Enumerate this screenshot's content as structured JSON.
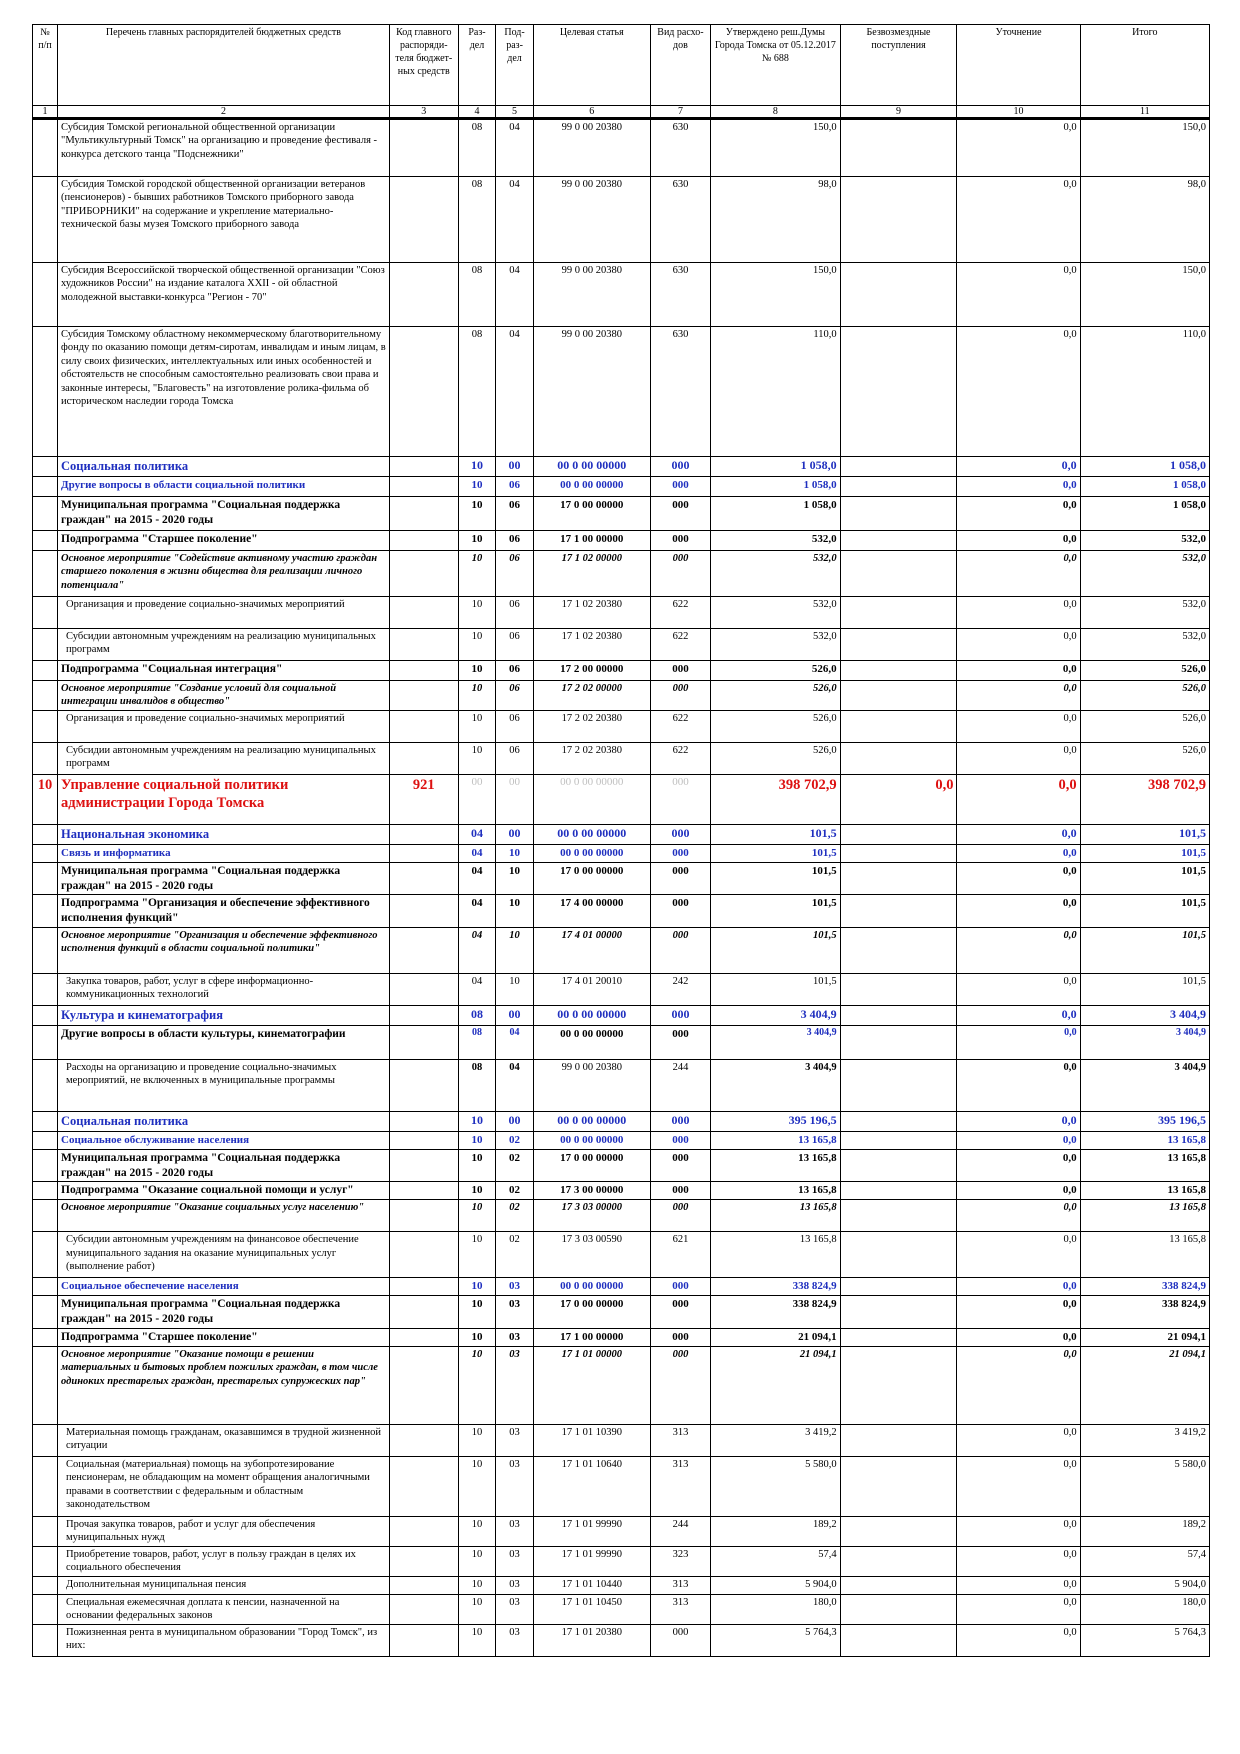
{
  "header": {
    "num": "№ п/п",
    "name": "Перечень главных распорядителей бюджетных средств",
    "code": "Код главного распоряди-теля бюджет-ных средств",
    "razdel": "Раз-дел",
    "podrazdel": "Под-раз-дел",
    "target": "Целевая статья",
    "vid": "Вид расхо-дов",
    "approved": "Утверждено реш.Думы Города Томска от 05.12.2017 № 688",
    "free": "Безвозмездные поступления",
    "clarify": "Уточнение",
    "total": "Итого"
  },
  "colnums": [
    "1",
    "2",
    "3",
    "4",
    "5",
    "6",
    "7",
    "8",
    "9",
    "10",
    "11"
  ],
  "rows": [
    {
      "style": "normal",
      "h": 58,
      "name": "Субсидия Томской региональной общественной организации \"Мультикультурный Томск\" на организацию и проведение фестиваля - конкурса детского танца \"Подснежники\"",
      "razdel": "08",
      "podrazdel": "04",
      "target": "99 0 00 20380",
      "vid": "630",
      "approved": "150,0",
      "clarify": "0,0",
      "total": "150,0"
    },
    {
      "style": "normal",
      "h": 86,
      "name": "Субсидия Томской городской общественной организации ветеранов (пенсионеров) - бывших работников Томского приборного завода \"ПРИБОРНИКИ\" на содержание и укрепление материально-технической базы музея Томского приборного завода",
      "razdel": "08",
      "podrazdel": "04",
      "target": "99 0 00 20380",
      "vid": "630",
      "approved": "98,0",
      "clarify": "0,0",
      "total": "98,0"
    },
    {
      "style": "normal",
      "h": 64,
      "name": "Субсидия Всероссийской творческой общественной организации \"Союз художников России\" на издание каталога XXII - ой областной молодежной выставки-конкурса \"Регион - 70\"",
      "razdel": "08",
      "podrazdel": "04",
      "target": "99 0 00 20380",
      "vid": "630",
      "approved": "150,0",
      "clarify": "0,0",
      "total": "150,0"
    },
    {
      "style": "normal",
      "h": 130,
      "name": "Субсидия Томскому областному некоммерческому благотворительному фонду по оказанию помощи детям-сиротам, инвалидам и иным лицам, в силу своих физических, интеллектуальных или иных особенностей и обстоятельств не способным самостоятельно реализовать свои права и законные интересы, \"Благовесть\" на изготовление ролика-фильма об историческом наследии города Томска",
      "razdel": "08",
      "podrazdel": "04",
      "target": "99 0 00 20380",
      "vid": "630",
      "approved": "110,0",
      "clarify": "0,0",
      "total": "110,0"
    },
    {
      "style": "blue",
      "h": 20,
      "name": "Социальная политика",
      "razdel": "10",
      "podrazdel": "00",
      "target": "00 0 00 00000",
      "vid": "000",
      "approved": "1 058,0",
      "clarify": "0,0",
      "total": "1 058,0"
    },
    {
      "style": "blue2",
      "h": 20,
      "name": "Другие вопросы в области социальной политики",
      "razdel": "10",
      "podrazdel": "06",
      "target": "00 0 00 00000",
      "vid": "000",
      "approved": "1 058,0",
      "clarify": "0,0",
      "total": "1 058,0"
    },
    {
      "style": "bold",
      "h": 34,
      "name": "Муниципальная программа \"Социальная поддержка граждан\" на 2015 - 2020 годы",
      "razdel": "10",
      "podrazdel": "06",
      "target": "17 0 00 00000",
      "vid": "000",
      "approved": "1 058,0",
      "clarify": "0,0",
      "total": "1 058,0"
    },
    {
      "style": "bold",
      "h": 20,
      "name": "Подпрограмма \"Старшее поколение\"",
      "razdel": "10",
      "podrazdel": "06",
      "target": "17 1 00 00000",
      "vid": "000",
      "approved": "532,0",
      "clarify": "0,0",
      "total": "532,0"
    },
    {
      "style": "ital",
      "h": 46,
      "name": "Основное мероприятие \"Содействие активному участию граждан старшего поколения в жизни общества для реализации личного потенциала\"",
      "razdel": "10",
      "podrazdel": "06",
      "target": "17 1 02 00000",
      "vid": "000",
      "approved": "532,0",
      "clarify": "0,0",
      "total": "532,0"
    },
    {
      "style": "sub",
      "h": 32,
      "name": "Организация и проведение социально-значимых мероприятий",
      "razdel": "10",
      "podrazdel": "06",
      "target": "17 1 02 20380",
      "vid": "622",
      "approved": "532,0",
      "clarify": "0,0",
      "total": "532,0"
    },
    {
      "style": "sub",
      "h": 32,
      "name": "Субсидии автономным учреждениям на реализацию муниципальных программ",
      "razdel": "10",
      "podrazdel": "06",
      "target": "17 1 02 20380",
      "vid": "622",
      "approved": "532,0",
      "clarify": "0,0",
      "total": "532,0"
    },
    {
      "style": "bold",
      "h": 20,
      "name": "Подпрограмма \"Социальная интеграция\"",
      "razdel": "10",
      "podrazdel": "06",
      "target": "17 2 00 00000",
      "vid": "000",
      "approved": "526,0",
      "clarify": "0,0",
      "total": "526,0"
    },
    {
      "style": "ital",
      "h": 30,
      "name": "Основное мероприятие \"Создание условий для социальной интеграции инвалидов в общество\"",
      "razdel": "10",
      "podrazdel": "06",
      "target": "17 2 02 00000",
      "vid": "000",
      "approved": "526,0",
      "clarify": "0,0",
      "total": "526,0"
    },
    {
      "style": "sub",
      "h": 32,
      "name": "Организация и проведение социально-значимых мероприятий",
      "razdel": "10",
      "podrazdel": "06",
      "target": "17 2 02 20380",
      "vid": "622",
      "approved": "526,0",
      "clarify": "0,0",
      "total": "526,0"
    },
    {
      "style": "sub",
      "h": 32,
      "name": "Субсидии автономным учреждениям на реализацию муниципальных программ",
      "razdel": "10",
      "podrazdel": "06",
      "target": "17 2 02 20380",
      "vid": "622",
      "approved": "526,0",
      "clarify": "0,0",
      "total": "526,0"
    },
    {
      "style": "red",
      "h": 50,
      "num": "10",
      "name": "Управление социальной политики администрации Города Томска",
      "code": "921",
      "razdel": "00",
      "podrazdel": "00",
      "target": "00 0 00 00000",
      "vid": "000",
      "approved": "398 702,9",
      "free": "0,0",
      "clarify": "0,0",
      "total": "398 702,9"
    },
    {
      "style": "blue",
      "h": 20,
      "name": "Национальная экономика",
      "razdel": "04",
      "podrazdel": "00",
      "target": "00 0 00 00000",
      "vid": "000",
      "approved": "101,5",
      "clarify": "0,0",
      "total": "101,5"
    },
    {
      "style": "blue2",
      "h": 18,
      "name": "Связь и информатика",
      "razdel": "04",
      "podrazdel": "10",
      "target": "00 0 00 00000",
      "vid": "000",
      "approved": "101,5",
      "clarify": "0,0",
      "total": "101,5"
    },
    {
      "style": "bold",
      "h": 32,
      "name": "Муниципальная программа \"Социальная поддержка граждан\" на 2015 - 2020 годы",
      "razdel": "04",
      "podrazdel": "10",
      "target": "17 0 00 00000",
      "vid": "000",
      "approved": "101,5",
      "clarify": "0,0",
      "total": "101,5"
    },
    {
      "style": "bold",
      "h": 32,
      "name": "Подпрограмма \"Организация и обеспечение эффективного исполнения функций\"",
      "razdel": "04",
      "podrazdel": "10",
      "target": "17 4 00 00000",
      "vid": "000",
      "approved": "101,5",
      "clarify": "0,0",
      "total": "101,5"
    },
    {
      "style": "ital",
      "h": 46,
      "name": "Основное мероприятие \"Организация и обеспечение эффективного исполнения функций в области социальной политики\"",
      "razdel": "04",
      "podrazdel": "10",
      "target": "17 4 01 00000",
      "vid": "000",
      "approved": "101,5",
      "clarify": "0,0",
      "total": "101,5"
    },
    {
      "style": "sub",
      "h": 32,
      "name": "Закупка товаров, работ, услуг в сфере информационно-коммуникационных технологий",
      "razdel": "04",
      "podrazdel": "10",
      "target": "17 4 01 20010",
      "vid": "242",
      "approved": "101,5",
      "clarify": "0,0",
      "total": "101,5"
    },
    {
      "style": "blue",
      "h": 20,
      "name": "Культура и кинематография",
      "razdel": "08",
      "podrazdel": "00",
      "target": "00 0 00 00000",
      "vid": "000",
      "approved": "3 404,9",
      "clarify": "0,0",
      "total": "3 404,9"
    },
    {
      "style": "bold",
      "h": 34,
      "name": "Другие вопросы в области культуры, кинематографии",
      "razdel": "08",
      "podrazdel": "04",
      "target": "00 0 00 00000",
      "vid": "000",
      "approved": "3 404,9",
      "clarify": "0,0",
      "total": "3 404,9",
      "blueNums": true
    },
    {
      "style": "sub",
      "h": 52,
      "name": "Расходы на организацию и проведение социально-значимых мероприятий, не включенных в муниципальные программы",
      "razdel": "08",
      "podrazdel": "04",
      "target": "99 0 00 20380",
      "vid": "244",
      "approved": "3 404,9",
      "clarify": "0,0",
      "total": "3 404,9",
      "boldNums": true
    },
    {
      "style": "blue",
      "h": 20,
      "name": "Социальная политика",
      "razdel": "10",
      "podrazdel": "00",
      "target": "00 0 00 00000",
      "vid": "000",
      "approved": "395 196,5",
      "clarify": "0,0",
      "total": "395 196,5"
    },
    {
      "style": "blue2",
      "h": 18,
      "name": "Социальное обслуживание населения",
      "razdel": "10",
      "podrazdel": "02",
      "target": "00 0 00 00000",
      "vid": "000",
      "approved": "13 165,8",
      "clarify": "0,0",
      "total": "13 165,8"
    },
    {
      "style": "bold",
      "h": 32,
      "name": "Муниципальная программа \"Социальная поддержка граждан\" на 2015 - 2020 годы",
      "razdel": "10",
      "podrazdel": "02",
      "target": "17 0 00 00000",
      "vid": "000",
      "approved": "13 165,8",
      "clarify": "0,0",
      "total": "13 165,8"
    },
    {
      "style": "bold",
      "h": 18,
      "name": "Подпрограмма \"Оказание социальной помощи и услуг\"",
      "razdel": "10",
      "podrazdel": "02",
      "target": "17 3 00 00000",
      "vid": "000",
      "approved": "13 165,8",
      "clarify": "0,0",
      "total": "13 165,8"
    },
    {
      "style": "ital",
      "h": 32,
      "name": "Основное мероприятие \"Оказание социальных услуг населению\"",
      "razdel": "10",
      "podrazdel": "02",
      "target": "17 3 03 00000",
      "vid": "000",
      "approved": "13 165,8",
      "clarify": "0,0",
      "total": "13 165,8"
    },
    {
      "style": "sub",
      "h": 46,
      "name": "Субсидии автономным учреждениям на финансовое обеспечение муниципального задания на оказание муниципальных услуг (выполнение работ)",
      "razdel": "10",
      "podrazdel": "02",
      "target": "17 3 03 00590",
      "vid": "621",
      "approved": "13 165,8",
      "clarify": "0,0",
      "total": "13 165,8"
    },
    {
      "style": "blue2",
      "h": 18,
      "name": "Социальное обеспечение населения",
      "razdel": "10",
      "podrazdel": "03",
      "target": "00 0 00 00000",
      "vid": "000",
      "approved": "338 824,9",
      "clarify": "0,0",
      "total": "338 824,9"
    },
    {
      "style": "bold",
      "h": 32,
      "name": "Муниципальная программа \"Социальная поддержка граждан\" на 2015 - 2020 годы",
      "razdel": "10",
      "podrazdel": "03",
      "target": "17 0 00 00000",
      "vid": "000",
      "approved": "338 824,9",
      "clarify": "0,0",
      "total": "338 824,9"
    },
    {
      "style": "bold",
      "h": 18,
      "name": "Подпрограмма \"Старшее поколение\"",
      "razdel": "10",
      "podrazdel": "03",
      "target": "17 1 00 00000",
      "vid": "000",
      "approved": "21 094,1",
      "clarify": "0,0",
      "total": "21 094,1"
    },
    {
      "style": "ital",
      "h": 78,
      "name": "Основное мероприятие \"Оказание помощи в решении материальных и бытовых проблем пожилых граждан, в том числе одиноких престарелых граждан, престарелых супружеских пар\"",
      "razdel": "10",
      "podrazdel": "03",
      "target": "17 1 01 00000",
      "vid": "000",
      "approved": "21 094,1",
      "clarify": "0,0",
      "total": "21 094,1"
    },
    {
      "style": "sub",
      "h": 32,
      "name": "Материальная помощь гражданам, оказавшимся в трудной жизненной ситуации",
      "razdel": "10",
      "podrazdel": "03",
      "target": "17 1 01 10390",
      "vid": "313",
      "approved": "3 419,2",
      "clarify": "0,0",
      "total": "3 419,2"
    },
    {
      "style": "sub",
      "h": 60,
      "name": "Социальная (материальная) помощь на зубопротезирование пенсионерам, не обладающим на момент обращения аналогичными правами в соответствии с федеральным и областным законодательством",
      "razdel": "10",
      "podrazdel": "03",
      "target": "17 1 01 10640",
      "vid": "313",
      "approved": "5 580,0",
      "clarify": "0,0",
      "total": "5 580,0"
    },
    {
      "style": "sub",
      "h": 30,
      "name": "Прочая закупка товаров, работ и услуг для обеспечения муниципальных нужд",
      "razdel": "10",
      "podrazdel": "03",
      "target": "17 1 01 99990",
      "vid": "244",
      "approved": "189,2",
      "clarify": "0,0",
      "total": "189,2"
    },
    {
      "style": "sub",
      "h": 30,
      "name": "Приобретение товаров, работ, услуг в пользу граждан в целях их социального обеспечения",
      "razdel": "10",
      "podrazdel": "03",
      "target": "17 1 01 99990",
      "vid": "323",
      "approved": "57,4",
      "clarify": "0,0",
      "total": "57,4"
    },
    {
      "style": "sub",
      "h": 18,
      "name": "Дополнительная муниципальная пенсия",
      "razdel": "10",
      "podrazdel": "03",
      "target": "17 1 01 10440",
      "vid": "313",
      "approved": "5 904,0",
      "clarify": "0,0",
      "total": "5 904,0"
    },
    {
      "style": "sub",
      "h": 30,
      "name": "Специальная ежемесячная доплата к пенсии, назначенной на основании федеральных законов",
      "razdel": "10",
      "podrazdel": "03",
      "target": "17 1 01 10450",
      "vid": "313",
      "approved": "180,0",
      "clarify": "0,0",
      "total": "180,0"
    },
    {
      "style": "sub",
      "h": 32,
      "name": "Пожизненная рента в муниципальном образовании \"Город Томск\", из них:",
      "razdel": "10",
      "podrazdel": "03",
      "target": "17 1 01 20380",
      "vid": "000",
      "approved": "5 764,3",
      "clarify": "0,0",
      "total": "5 764,3"
    }
  ]
}
